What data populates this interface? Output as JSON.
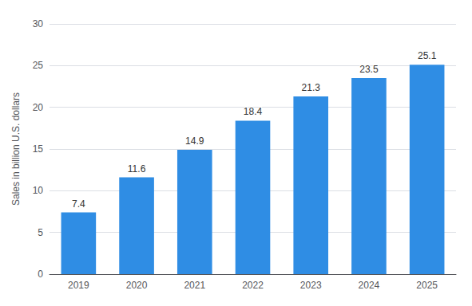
{
  "chart_data": {
    "type": "bar",
    "categories": [
      "2019",
      "2020",
      "2021",
      "2022",
      "2023",
      "2024",
      "2025"
    ],
    "values": [
      7.4,
      11.6,
      14.9,
      18.4,
      21.3,
      23.5,
      25.1
    ],
    "color": "#2f8de4",
    "ylabel": "Sales in billion U.S. dollars",
    "ylim": [
      0,
      30
    ],
    "yticks": [
      0,
      5,
      10,
      15,
      20,
      25,
      30
    ],
    "grid": true,
    "data_labels": true
  }
}
